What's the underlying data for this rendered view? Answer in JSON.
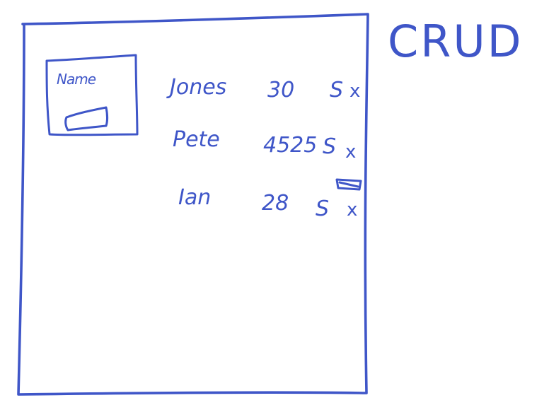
{
  "title": "CRUD",
  "form": {
    "label": "Name"
  },
  "rows": [
    {
      "name": "Jones",
      "age": "30",
      "sex": "S",
      "delete": "x"
    },
    {
      "name": "Pete",
      "age": "4525",
      "sex": "S",
      "delete": "x"
    },
    {
      "name": "Ian",
      "age": "28",
      "sex": "S",
      "delete": "x"
    }
  ],
  "colors": {
    "ink": "#3f56c8",
    "background": "#ffffff"
  }
}
